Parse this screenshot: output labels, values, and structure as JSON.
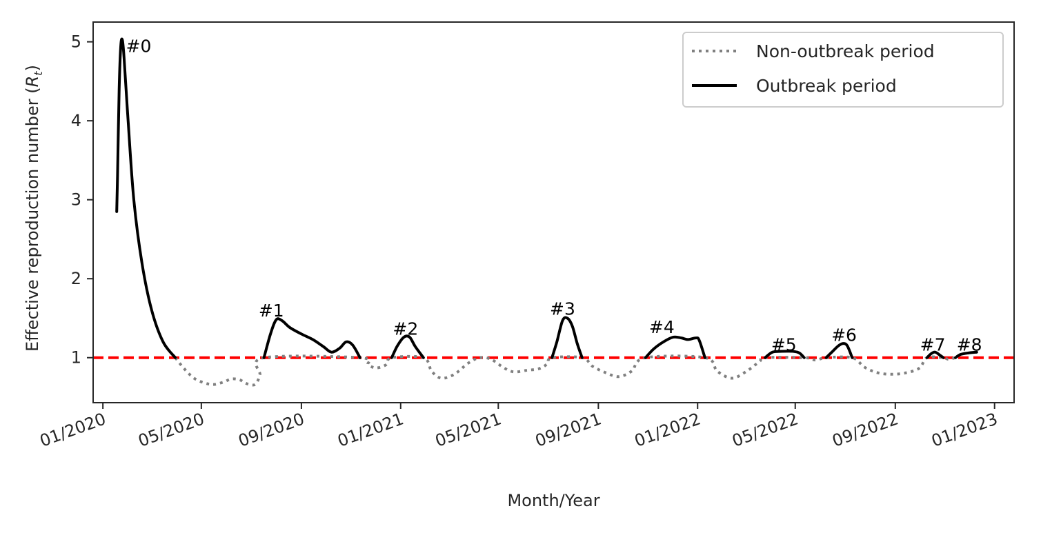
{
  "chart_data": {
    "type": "line",
    "xlabel": "Month/Year",
    "ylabel_main": "Effective reproduction number (",
    "ylabel_symbol": "R",
    "ylabel_subscript": "t",
    "ylabel_close": ")",
    "xlim": [
      "2019-12-20",
      "2023-01-25"
    ],
    "ylim": [
      0.43,
      5.25
    ],
    "x_ticks": [
      "2020-01-01",
      "2020-05-01",
      "2020-09-01",
      "2021-01-01",
      "2021-05-01",
      "2021-09-01",
      "2022-01-01",
      "2022-05-01",
      "2022-09-01",
      "2023-01-01"
    ],
    "x_tick_labels": [
      "01/2020",
      "05/2020",
      "09/2020",
      "01/2021",
      "05/2021",
      "09/2021",
      "01/2022",
      "05/2022",
      "09/2022",
      "01/2023"
    ],
    "y_ticks": [
      1,
      2,
      3,
      4,
      5
    ],
    "y_tick_labels": [
      "1",
      "2",
      "3",
      "4",
      "5"
    ],
    "reference_line": {
      "y": 1,
      "color": "#ff0000",
      "style": "dashed"
    },
    "grid": false,
    "legend": {
      "position": "top-right",
      "entries": [
        {
          "label": "Non-outbreak period",
          "style": "dotted",
          "color": "#808080"
        },
        {
          "label": "Outbreak period",
          "style": "solid",
          "color": "#000000"
        }
      ]
    },
    "series": [
      {
        "style": "dotted",
        "color": "#808080",
        "points": [
          [
            "2020-03-30",
            1.0
          ],
          [
            "2020-04-10",
            0.86
          ],
          [
            "2020-04-22",
            0.74
          ],
          [
            "2020-05-05",
            0.68
          ],
          [
            "2020-05-16",
            0.66
          ],
          [
            "2020-05-28",
            0.69
          ],
          [
            "2020-06-07",
            0.73
          ],
          [
            "2020-06-17",
            0.72
          ],
          [
            "2020-06-26",
            0.67
          ],
          [
            "2020-07-06",
            0.66
          ],
          [
            "2020-07-12",
            0.78
          ],
          [
            "2020-07-17",
            1.0
          ],
          [
            "2020-11-12",
            1.0
          ],
          [
            "2020-11-22",
            0.91
          ],
          [
            "2020-12-02",
            0.87
          ],
          [
            "2020-12-14",
            0.91
          ],
          [
            "2020-12-21",
            1.0
          ],
          [
            "2021-01-29",
            1.0
          ],
          [
            "2021-02-08",
            0.83
          ],
          [
            "2021-02-20",
            0.74
          ],
          [
            "2021-03-08",
            0.79
          ],
          [
            "2021-03-25",
            0.93
          ],
          [
            "2021-04-08",
            1.0
          ],
          [
            "2021-04-22",
            0.98
          ],
          [
            "2021-05-08",
            0.87
          ],
          [
            "2021-05-20",
            0.82
          ],
          [
            "2021-06-05",
            0.84
          ],
          [
            "2021-06-20",
            0.86
          ],
          [
            "2021-06-30",
            0.92
          ],
          [
            "2021-07-06",
            1.0
          ],
          [
            "2021-08-12",
            1.0
          ],
          [
            "2021-08-25",
            0.89
          ],
          [
            "2021-09-10",
            0.81
          ],
          [
            "2021-09-26",
            0.76
          ],
          [
            "2021-10-12",
            0.83
          ],
          [
            "2021-10-29",
            1.0
          ],
          [
            "2022-01-10",
            1.0
          ],
          [
            "2022-01-25",
            0.83
          ],
          [
            "2022-02-12",
            0.74
          ],
          [
            "2022-03-01",
            0.82
          ],
          [
            "2022-03-18",
            0.95
          ],
          [
            "2022-03-25",
            1.0
          ],
          [
            "2022-05-12",
            1.0
          ],
          [
            "2022-05-26",
            0.97
          ],
          [
            "2022-06-08",
            1.0
          ],
          [
            "2022-07-10",
            1.0
          ],
          [
            "2022-07-25",
            0.88
          ],
          [
            "2022-08-10",
            0.81
          ],
          [
            "2022-08-28",
            0.79
          ],
          [
            "2022-09-15",
            0.81
          ],
          [
            "2022-10-01",
            0.87
          ],
          [
            "2022-10-10",
            1.0
          ],
          [
            "2022-10-30",
            1.0
          ],
          [
            "2022-11-05",
            0.98
          ],
          [
            "2022-11-14",
            1.0
          ]
        ]
      },
      {
        "style": "solid",
        "color": "#000000",
        "name_annotation": "#0",
        "annotation_at": [
          "2020-02-14",
          4.95
        ],
        "points": [
          [
            "2020-01-18",
            2.85
          ],
          [
            "2020-01-19",
            3.3
          ],
          [
            "2020-01-21",
            4.4
          ],
          [
            "2020-01-23",
            4.95
          ],
          [
            "2020-01-25",
            5.02
          ],
          [
            "2020-01-27",
            4.8
          ],
          [
            "2020-02-01",
            4.0
          ],
          [
            "2020-02-08",
            3.0
          ],
          [
            "2020-02-18",
            2.2
          ],
          [
            "2020-03-01",
            1.6
          ],
          [
            "2020-03-15",
            1.2
          ],
          [
            "2020-03-30",
            1.0
          ]
        ]
      },
      {
        "style": "solid",
        "color": "#000000",
        "name_annotation": "#1",
        "annotation_at": [
          "2020-07-26",
          1.6
        ],
        "points": [
          [
            "2020-07-17",
            1.0
          ],
          [
            "2020-07-25",
            1.3
          ],
          [
            "2020-08-01",
            1.48
          ],
          [
            "2020-08-08",
            1.47
          ],
          [
            "2020-08-18",
            1.38
          ],
          [
            "2020-09-01",
            1.3
          ],
          [
            "2020-09-15",
            1.23
          ],
          [
            "2020-09-28",
            1.14
          ],
          [
            "2020-10-08",
            1.07
          ],
          [
            "2020-10-18",
            1.12
          ],
          [
            "2020-10-26",
            1.2
          ],
          [
            "2020-11-03",
            1.16
          ],
          [
            "2020-11-12",
            1.0
          ]
        ]
      },
      {
        "style": "solid",
        "color": "#000000",
        "name_annotation": "#2",
        "annotation_at": [
          "2021-01-07",
          1.37
        ],
        "points": [
          [
            "2020-12-21",
            1.0
          ],
          [
            "2020-12-28",
            1.15
          ],
          [
            "2021-01-05",
            1.26
          ],
          [
            "2021-01-12",
            1.26
          ],
          [
            "2021-01-19",
            1.14
          ],
          [
            "2021-01-29",
            1.0
          ]
        ]
      },
      {
        "style": "solid",
        "color": "#000000",
        "name_annotation": "#3",
        "annotation_at": [
          "2021-07-19",
          1.62
        ],
        "points": [
          [
            "2021-07-06",
            1.0
          ],
          [
            "2021-07-12",
            1.2
          ],
          [
            "2021-07-19",
            1.47
          ],
          [
            "2021-07-25",
            1.5
          ],
          [
            "2021-07-31",
            1.4
          ],
          [
            "2021-08-06",
            1.18
          ],
          [
            "2021-08-12",
            1.0
          ]
        ]
      },
      {
        "style": "solid",
        "color": "#000000",
        "name_annotation": "#4",
        "annotation_at": [
          "2021-11-18",
          1.39
        ],
        "points": [
          [
            "2021-10-29",
            1.0
          ],
          [
            "2021-11-08",
            1.11
          ],
          [
            "2021-11-20",
            1.2
          ],
          [
            "2021-12-02",
            1.26
          ],
          [
            "2021-12-12",
            1.25
          ],
          [
            "2021-12-20",
            1.23
          ],
          [
            "2021-12-30",
            1.25
          ],
          [
            "2022-01-03",
            1.22
          ],
          [
            "2022-01-10",
            1.0
          ]
        ]
      },
      {
        "style": "solid",
        "color": "#000000",
        "name_annotation": "#5",
        "annotation_at": [
          "2022-04-17",
          1.17
        ],
        "points": [
          [
            "2022-03-25",
            1.0
          ],
          [
            "2022-04-03",
            1.07
          ],
          [
            "2022-04-15",
            1.08
          ],
          [
            "2022-04-28",
            1.08
          ],
          [
            "2022-05-06",
            1.06
          ],
          [
            "2022-05-12",
            1.0
          ]
        ]
      },
      {
        "style": "solid",
        "color": "#000000",
        "name_annotation": "#6",
        "annotation_at": [
          "2022-06-30",
          1.29
        ],
        "points": [
          [
            "2022-06-08",
            1.0
          ],
          [
            "2022-06-15",
            1.07
          ],
          [
            "2022-06-23",
            1.15
          ],
          [
            "2022-06-29",
            1.18
          ],
          [
            "2022-07-04",
            1.15
          ],
          [
            "2022-07-10",
            1.0
          ]
        ]
      },
      {
        "style": "solid",
        "color": "#000000",
        "name_annotation": "#7",
        "annotation_at": [
          "2022-10-17",
          1.17
        ],
        "points": [
          [
            "2022-10-10",
            1.0
          ],
          [
            "2022-10-15",
            1.05
          ],
          [
            "2022-10-20",
            1.07
          ],
          [
            "2022-10-26",
            1.03
          ],
          [
            "2022-10-30",
            1.0
          ]
        ]
      },
      {
        "style": "solid",
        "color": "#000000",
        "name_annotation": "#8",
        "annotation_at": [
          "2022-12-01",
          1.17
        ],
        "points": [
          [
            "2022-11-14",
            1.0
          ],
          [
            "2022-11-20",
            1.04
          ],
          [
            "2022-11-30",
            1.06
          ],
          [
            "2022-12-10",
            1.07
          ]
        ]
      }
    ]
  }
}
